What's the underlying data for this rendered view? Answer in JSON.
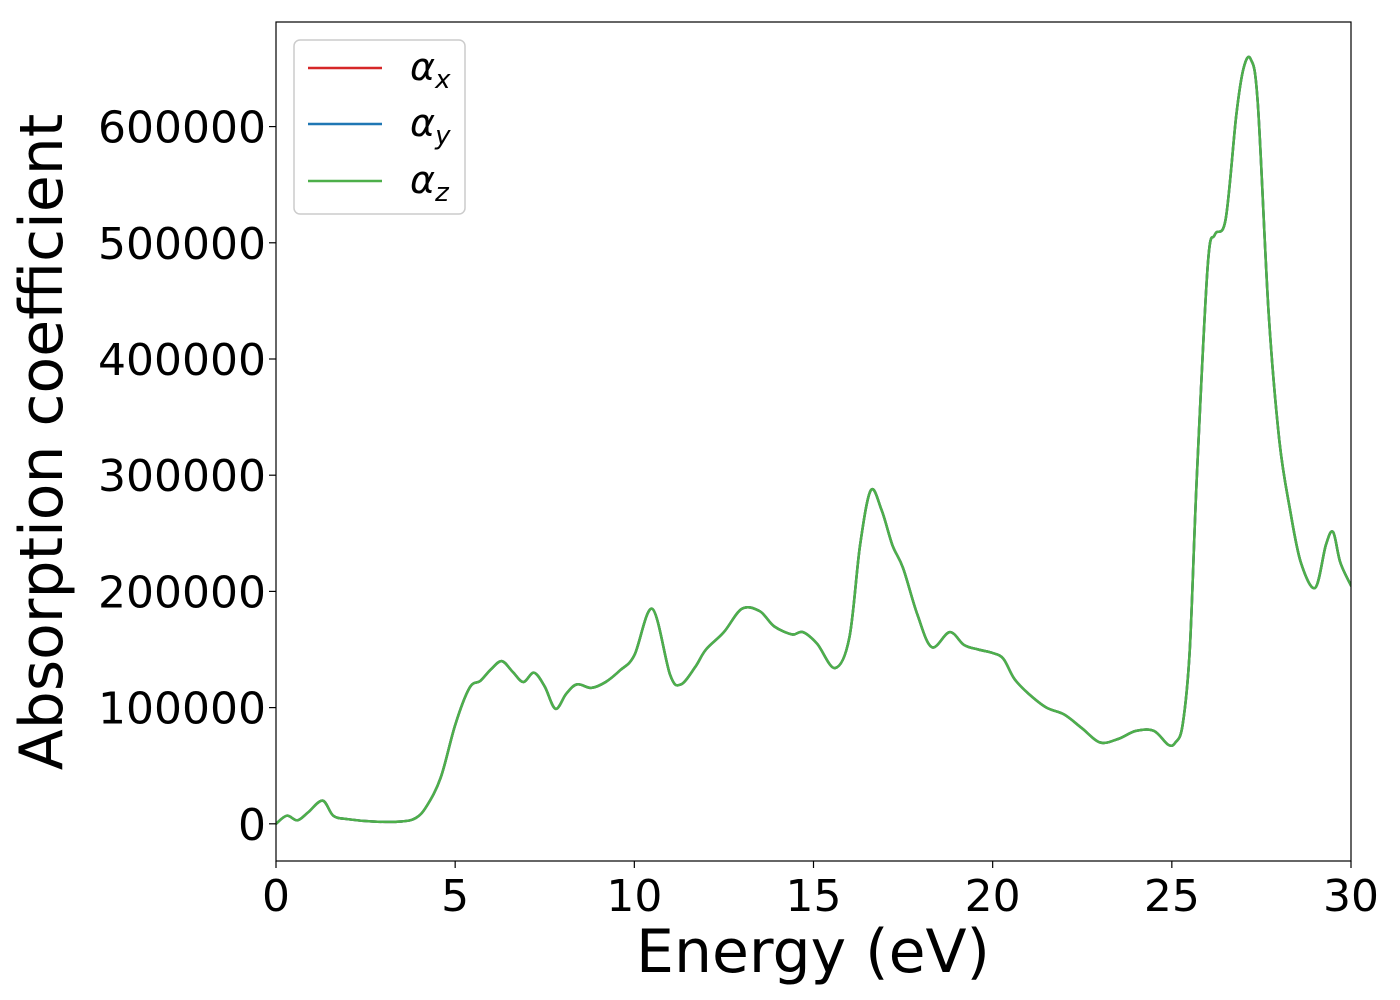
{
  "chart_data": {
    "type": "line",
    "title": "",
    "xlabel": "Energy (eV)",
    "ylabel": "Absorption coefficient",
    "xlim": [
      0,
      30
    ],
    "ylim": [
      -32000,
      690000
    ],
    "xticks": [
      0,
      5,
      10,
      15,
      20,
      25,
      30
    ],
    "xtick_labels": [
      "0",
      "5",
      "10",
      "15",
      "20",
      "25",
      "30"
    ],
    "yticks": [
      0,
      100000,
      200000,
      300000,
      400000,
      500000,
      600000
    ],
    "ytick_labels": [
      "0",
      "100000",
      "200000",
      "300000",
      "400000",
      "500000",
      "600000"
    ],
    "grid": false,
    "legend_position": "top-left",
    "series": [
      {
        "name": "α",
        "subscript": "x",
        "color": "#d62728"
      },
      {
        "name": "α",
        "subscript": "y",
        "color": "#1f77b4"
      },
      {
        "name": "α",
        "subscript": "z",
        "color": "#4daf4a"
      }
    ],
    "curve_shared_by_all_series": {
      "x": [
        0,
        0.3,
        0.6,
        0.9,
        1.3,
        1.6,
        2.0,
        2.7,
        3.5,
        3.9,
        4.2,
        4.6,
        5.0,
        5.4,
        5.7,
        6.0,
        6.3,
        6.6,
        6.9,
        7.2,
        7.5,
        7.8,
        8.1,
        8.4,
        8.8,
        9.2,
        9.6,
        10.0,
        10.5,
        11.0,
        11.3,
        11.7,
        12.0,
        12.5,
        13.0,
        13.5,
        13.9,
        14.4,
        14.7,
        15.1,
        15.6,
        16.0,
        16.3,
        16.6,
        16.9,
        17.2,
        17.5,
        17.9,
        18.3,
        18.8,
        19.2,
        19.6,
        20.0,
        20.3,
        20.6,
        21.0,
        21.5,
        22.0,
        22.5,
        23.0,
        23.5,
        24.0,
        24.5,
        24.9,
        25.1,
        25.3,
        25.5,
        25.7,
        26.0,
        26.2,
        26.5,
        26.8,
        27.0,
        27.2,
        27.4,
        27.7,
        28.0,
        28.3,
        28.6,
        29.0,
        29.3,
        29.5,
        29.7,
        30.0
      ],
      "y": [
        0,
        7000,
        3000,
        10000,
        20000,
        7000,
        4000,
        2000,
        2000,
        5000,
        15000,
        40000,
        85000,
        117000,
        123000,
        133000,
        140000,
        131000,
        122000,
        130000,
        118000,
        99000,
        112000,
        120000,
        117000,
        122000,
        132000,
        145000,
        185000,
        128000,
        120000,
        135000,
        150000,
        165000,
        185000,
        183000,
        170000,
        163000,
        165000,
        155000,
        134000,
        160000,
        240000,
        287000,
        270000,
        240000,
        220000,
        180000,
        152000,
        165000,
        154000,
        150000,
        147000,
        142000,
        125000,
        112000,
        100000,
        94000,
        82000,
        70000,
        73000,
        80000,
        80000,
        68000,
        70000,
        85000,
        150000,
        300000,
        480000,
        507000,
        520000,
        610000,
        650000,
        658000,
        620000,
        440000,
        330000,
        270000,
        225000,
        203000,
        240000,
        251000,
        225000,
        205000
      ]
    }
  }
}
